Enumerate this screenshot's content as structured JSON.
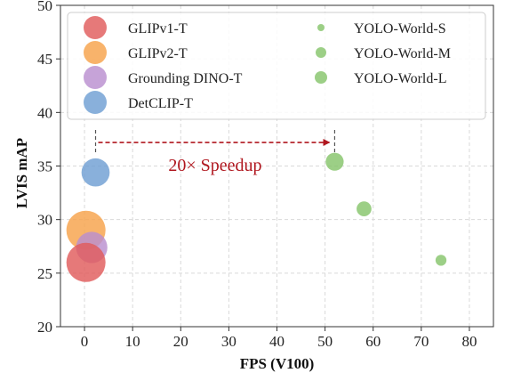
{
  "chart_data": {
    "type": "scatter",
    "title": "",
    "xlabel": "FPS (V100)",
    "ylabel": "LVIS mAP",
    "xlim": [
      -5,
      85
    ],
    "ylim": [
      20,
      50
    ],
    "x_ticks": [
      0,
      10,
      20,
      30,
      40,
      50,
      60,
      70,
      80
    ],
    "y_ticks": [
      20,
      25,
      30,
      35,
      40,
      45,
      50
    ],
    "grid": true,
    "legend_position": "top",
    "series": [
      {
        "name": "GLIPv1-T",
        "color": "#e05c5c",
        "x": 0.3,
        "y": 26.0,
        "size": 1.0
      },
      {
        "name": "GLIPv2-T",
        "color": "#f6a24b",
        "x": 0.3,
        "y": 29.0,
        "size": 1.0
      },
      {
        "name": "Grounding DINO-T",
        "color": "#b98fd0",
        "x": 1.5,
        "y": 27.4,
        "size": 0.8
      },
      {
        "name": "DetCLIP-T",
        "color": "#6f9fd3",
        "x": 2.3,
        "y": 34.4,
        "size": 0.72
      },
      {
        "name": "YOLO-World-S",
        "color": "#86c46b",
        "x": 74.1,
        "y": 26.2,
        "size": 0.28
      },
      {
        "name": "YOLO-World-M",
        "color": "#86c46b",
        "x": 58.1,
        "y": 31.0,
        "size": 0.38
      },
      {
        "name": "YOLO-World-L",
        "color": "#86c46b",
        "x": 52.0,
        "y": 35.4,
        "size": 0.46
      }
    ],
    "annotations": [
      {
        "text": "20× Speedup",
        "from_x": 2.3,
        "to_x": 52.0,
        "y": 37.2,
        "color": "#b0171f"
      }
    ]
  }
}
